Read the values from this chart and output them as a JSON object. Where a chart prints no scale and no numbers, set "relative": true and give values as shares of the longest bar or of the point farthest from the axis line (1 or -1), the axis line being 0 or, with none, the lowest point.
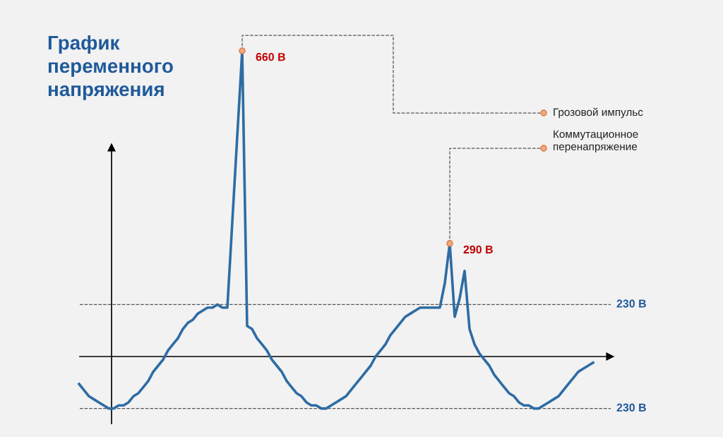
{
  "chart_data": {
    "type": "line",
    "title": "График переменного напряжения",
    "relative": true,
    "categories": [
      null,
      null,
      null,
      null,
      null,
      null,
      null,
      null,
      null,
      null,
      null,
      null,
      null,
      null,
      null,
      null,
      null,
      null,
      null,
      null,
      null,
      null,
      null,
      null,
      null,
      null,
      null,
      null,
      null,
      null,
      null,
      null,
      null,
      null,
      null,
      null,
      null,
      null,
      null,
      null,
      null,
      null,
      null,
      null,
      null,
      null,
      null,
      null,
      null,
      null,
      null,
      null,
      null,
      null,
      null,
      null,
      null,
      null,
      null,
      null,
      null,
      null,
      null,
      null,
      null,
      null,
      null,
      null,
      null,
      null,
      null,
      null,
      null,
      null,
      null,
      null,
      null,
      null,
      null,
      null,
      null,
      null,
      null,
      null,
      null,
      null,
      null,
      null,
      null,
      null,
      null,
      null,
      null,
      null,
      null,
      null,
      null,
      null,
      null,
      null,
      null,
      null,
      null,
      null,
      null
    ],
    "series": [
      {
        "color": "#2e6ca4",
        "values": [
          -0.09,
          -0.11,
          -0.13,
          -0.14,
          -0.15,
          -0.16,
          -0.17,
          -0.17,
          -0.16,
          -0.16,
          -0.15,
          -0.13,
          -0.12,
          -0.1,
          -0.08,
          -0.05,
          -0.03,
          -0.01,
          0.02,
          0.04,
          0.06,
          0.09,
          0.11,
          0.12,
          0.14,
          0.15,
          0.16,
          0.16,
          0.17,
          0.16,
          0.16,
          0.44,
          0.72,
          1.0,
          0.1,
          0.09,
          0.06,
          0.04,
          0.02,
          -0.01,
          -0.03,
          -0.05,
          -0.08,
          -0.1,
          -0.12,
          -0.13,
          -0.15,
          -0.16,
          -0.16,
          -0.17,
          -0.17,
          -0.16,
          -0.15,
          -0.14,
          -0.13,
          -0.11,
          -0.09,
          -0.07,
          -0.05,
          -0.03,
          0.0,
          0.02,
          0.04,
          0.07,
          0.09,
          0.11,
          0.13,
          0.14,
          0.15,
          0.16,
          0.16,
          0.16,
          0.16,
          0.16,
          0.24,
          0.37,
          0.13,
          0.19,
          0.28,
          0.09,
          0.04,
          0.01,
          -0.01,
          -0.03,
          -0.06,
          -0.08,
          -0.1,
          -0.12,
          -0.13,
          -0.15,
          -0.16,
          -0.16,
          -0.17,
          -0.17,
          -0.16,
          -0.15,
          -0.14,
          -0.13,
          -0.11,
          -0.09,
          -0.07,
          -0.05,
          -0.04,
          -0.03,
          -0.02
        ]
      }
    ],
    "ref_lines": [
      {
        "axis": "y",
        "value": 0.17,
        "label": "230 В",
        "color": "#555555",
        "line_style": "dashed"
      },
      {
        "axis": "y",
        "value": -0.17,
        "label": "230 В",
        "color": "#555555",
        "line_style": "dashed"
      }
    ],
    "annotations": [
      "660 В",
      "290 В",
      "Грозовой импульс",
      "Коммутационное\nперенапряжение"
    ]
  }
}
